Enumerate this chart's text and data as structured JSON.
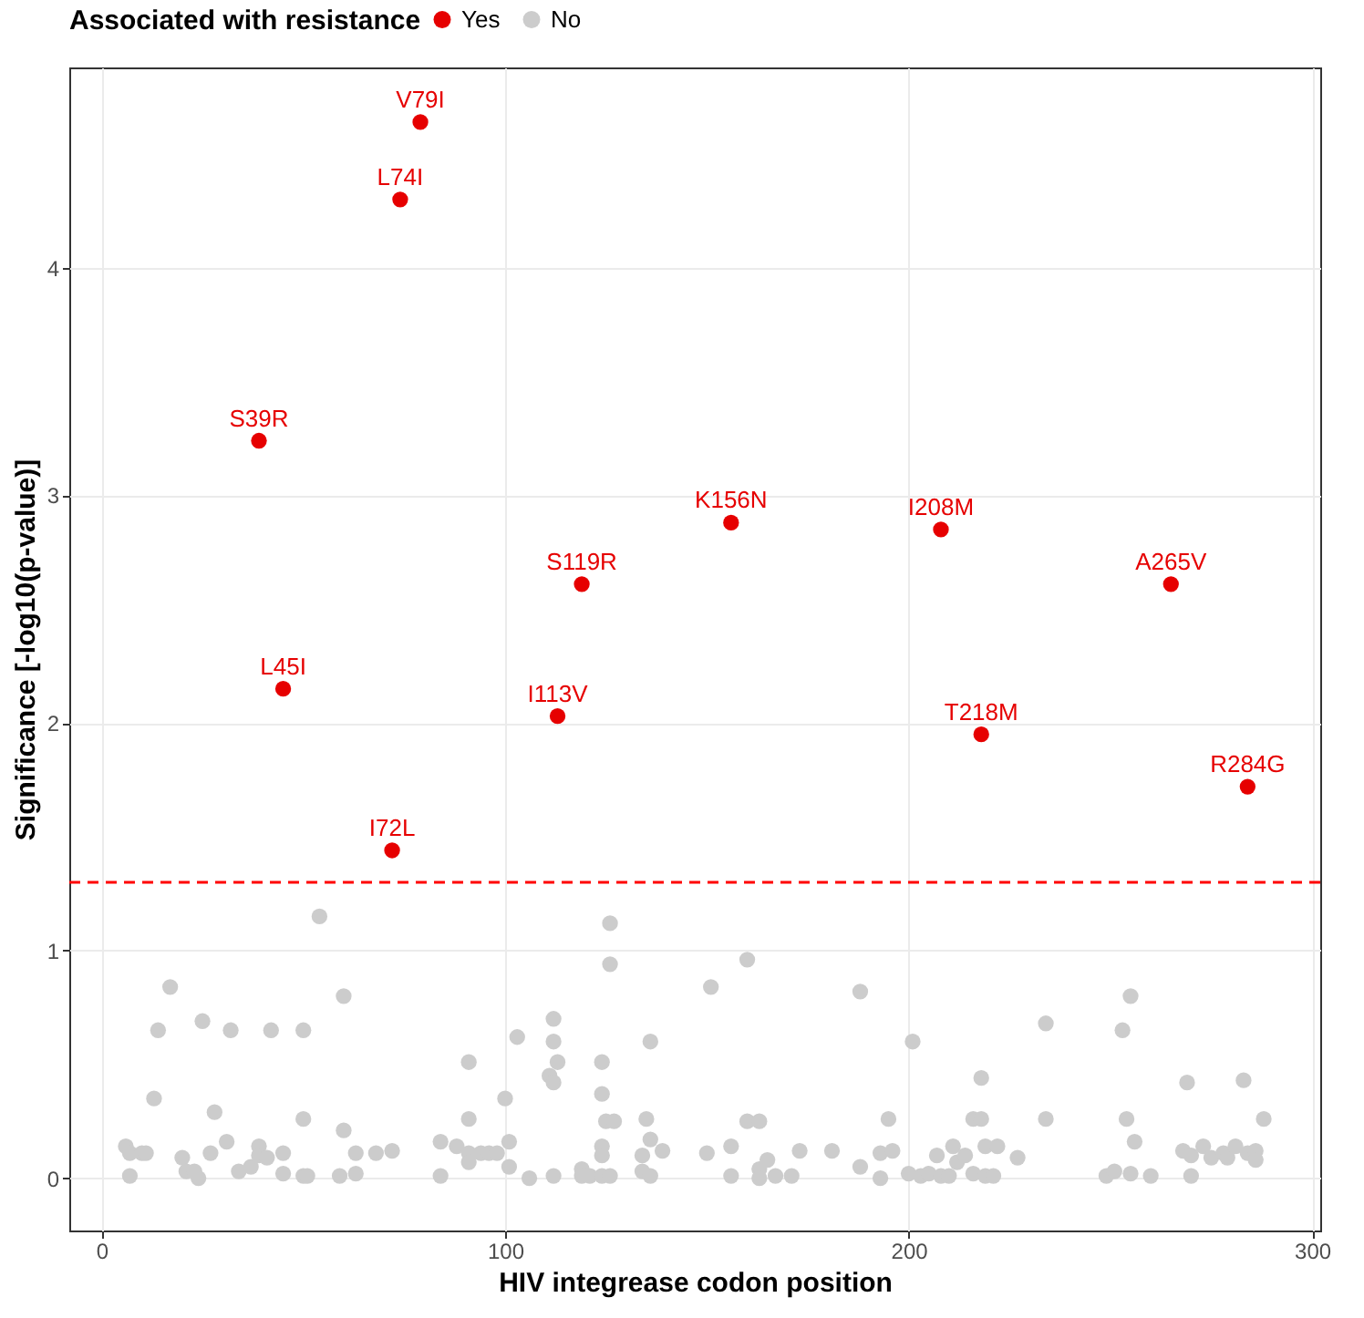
{
  "chart_data": {
    "type": "scatter",
    "xlabel": "HIV integrease codon position",
    "ylabel": "Significance [-log10(p-value)]",
    "legend_title": "Associated with resistance",
    "legend": "top",
    "grid": true,
    "marker": "circle",
    "xlim": [
      -8,
      302
    ],
    "xticks": [
      0,
      100,
      200,
      300
    ],
    "ylim": [
      -0.23,
      4.88
    ],
    "yticks": [
      0,
      1,
      2,
      3,
      4
    ],
    "series": [
      {
        "name": "Yes",
        "color": "#e60000",
        "x": [
          39,
          45,
          72,
          74,
          79,
          113,
          119,
          156,
          208,
          218,
          265,
          284
        ],
        "values": [
          3.24,
          2.15,
          1.44,
          4.3,
          4.64,
          2.03,
          2.61,
          2.88,
          2.85,
          1.95,
          2.61,
          1.72
        ]
      },
      {
        "name": "No",
        "color": "#cccccc",
        "x": [
          54,
          17,
          14,
          25,
          32,
          42,
          50,
          60,
          13,
          28,
          50,
          60,
          91,
          91,
          6,
          7,
          10,
          11,
          7,
          20,
          21,
          23,
          24,
          27,
          31,
          34,
          37,
          39,
          39,
          41,
          45,
          45,
          50,
          51,
          59,
          63,
          63,
          68,
          72,
          84,
          84,
          88,
          91,
          91,
          94,
          96,
          98,
          126,
          126,
          151,
          160,
          188,
          103,
          112,
          112,
          113,
          111,
          112,
          136,
          124,
          124,
          100,
          125,
          127,
          135,
          160,
          163,
          195,
          201,
          101,
          101,
          106,
          112,
          119,
          119,
          121,
          124,
          126,
          124,
          124,
          134,
          134,
          136,
          136,
          139,
          150,
          156,
          156,
          163,
          163,
          165,
          167,
          171,
          173,
          181,
          188,
          193,
          196,
          193,
          200,
          234,
          255,
          253,
          218,
          269,
          283,
          216,
          218,
          234,
          254,
          288,
          256,
          203,
          205,
          207,
          208,
          210,
          211,
          212,
          214,
          216,
          219,
          219,
          221,
          222,
          227,
          249,
          251,
          255,
          260,
          270,
          268,
          270,
          273,
          275,
          278,
          279,
          281,
          284,
          286,
          286
        ],
        "values": [
          1.15,
          0.84,
          0.65,
          0.69,
          0.65,
          0.65,
          0.65,
          0.8,
          0.35,
          0.29,
          0.26,
          0.21,
          0.51,
          0.26,
          0.14,
          0.11,
          0.11,
          0.11,
          0.01,
          0.09,
          0.03,
          0.03,
          0.0,
          0.11,
          0.16,
          0.03,
          0.05,
          0.14,
          0.1,
          0.09,
          0.11,
          0.02,
          0.01,
          0.01,
          0.01,
          0.11,
          0.02,
          0.11,
          0.12,
          0.16,
          0.01,
          0.14,
          0.11,
          0.07,
          0.11,
          0.11,
          0.11,
          1.12,
          0.94,
          0.84,
          0.96,
          0.82,
          0.62,
          0.7,
          0.6,
          0.51,
          0.45,
          0.42,
          0.6,
          0.51,
          0.37,
          0.35,
          0.25,
          0.25,
          0.26,
          0.25,
          0.25,
          0.26,
          0.6,
          0.16,
          0.05,
          0.0,
          0.01,
          0.04,
          0.01,
          0.01,
          0.01,
          0.01,
          0.14,
          0.1,
          0.1,
          0.03,
          0.17,
          0.01,
          0.12,
          0.11,
          0.14,
          0.01,
          0.04,
          0.0,
          0.08,
          0.01,
          0.01,
          0.12,
          0.12,
          0.05,
          0.11,
          0.12,
          0.0,
          0.02,
          0.68,
          0.8,
          0.65,
          0.44,
          0.42,
          0.43,
          0.26,
          0.26,
          0.26,
          0.26,
          0.26,
          0.16,
          0.01,
          0.02,
          0.1,
          0.01,
          0.01,
          0.14,
          0.07,
          0.1,
          0.02,
          0.01,
          0.14,
          0.01,
          0.14,
          0.09,
          0.01,
          0.03,
          0.02,
          0.01,
          0.01,
          0.12,
          0.1,
          0.14,
          0.09,
          0.11,
          0.09,
          0.14,
          0.11,
          0.12,
          0.08
        ]
      }
    ],
    "ref_lines": [
      {
        "axis": "y",
        "value": 1.3,
        "color": "#ff0000",
        "line_style": "dashed"
      }
    ],
    "annotations": [
      {
        "text": "V79I",
        "x": 79,
        "y": 4.64
      },
      {
        "text": "L74I",
        "x": 74,
        "y": 4.3
      },
      {
        "text": "S39R",
        "x": 39,
        "y": 3.24
      },
      {
        "text": "K156N",
        "x": 156,
        "y": 2.88
      },
      {
        "text": "I208M",
        "x": 208,
        "y": 2.85
      },
      {
        "text": "S119R",
        "x": 119,
        "y": 2.61
      },
      {
        "text": "A265V",
        "x": 265,
        "y": 2.61
      },
      {
        "text": "L45I",
        "x": 45,
        "y": 2.15
      },
      {
        "text": "I113V",
        "x": 113,
        "y": 2.03
      },
      {
        "text": "T218M",
        "x": 218,
        "y": 1.95
      },
      {
        "text": "R284G",
        "x": 284,
        "y": 1.72
      },
      {
        "text": "I72L",
        "x": 72,
        "y": 1.44
      }
    ]
  }
}
